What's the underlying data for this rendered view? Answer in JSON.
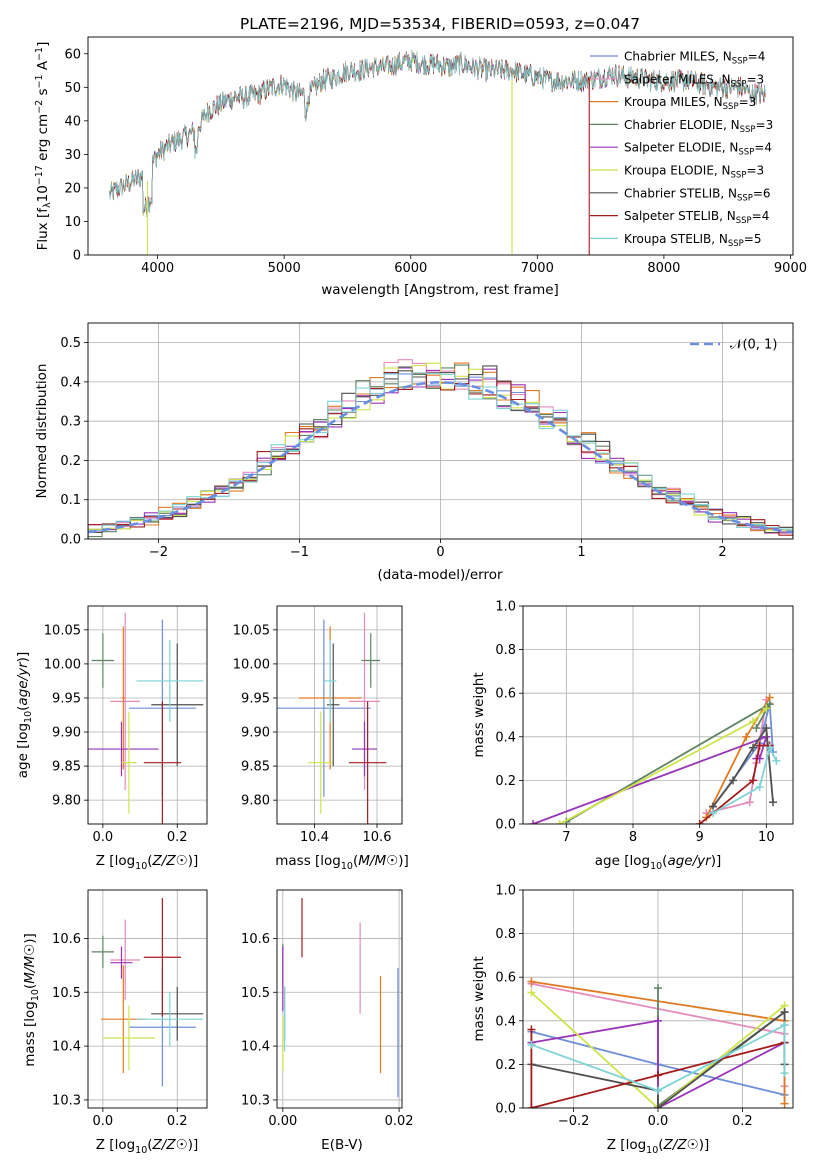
{
  "title": "PLATE=2196, MJD=53534, FIBERID=0593, z=0.047",
  "colors": {
    "chabrier_miles": "#6e8fd8",
    "salpeter_miles": "#e58bbd",
    "kroupa_miles": "#e07a22",
    "chabrier_elodie": "#5e8464",
    "salpeter_elodie": "#9a33b8",
    "kroupa_elodie": "#cfe34a",
    "chabrier_stelib": "#505050",
    "salpeter_stelib": "#a51c1c",
    "kroupa_stelib": "#7fd3d6"
  },
  "chart_data": [
    {
      "id": "spectrum",
      "type": "line",
      "xlabel": "wavelength [Angstrom, rest frame]",
      "ylabel_parts": [
        "Flux [f",
        "λ",
        "10",
        "−17",
        " erg cm",
        "−2",
        " s",
        "−1",
        " A",
        "−1",
        "]"
      ],
      "xlim": [
        3450,
        9020
      ],
      "ylim": [
        0,
        65
      ],
      "xticks": [
        4000,
        5000,
        6000,
        7000,
        8000,
        9000
      ],
      "yticks": [
        0,
        10,
        20,
        30,
        40,
        50,
        60
      ],
      "continuum": [
        [
          3620,
          18
        ],
        [
          3700,
          20
        ],
        [
          3800,
          22
        ],
        [
          3900,
          24
        ],
        [
          4000,
          30
        ],
        [
          4100,
          33
        ],
        [
          4200,
          35
        ],
        [
          4300,
          37
        ],
        [
          4400,
          43
        ],
        [
          4500,
          45
        ],
        [
          4600,
          47
        ],
        [
          4700,
          47
        ],
        [
          4800,
          48
        ],
        [
          4900,
          50
        ],
        [
          5000,
          51
        ],
        [
          5100,
          48
        ],
        [
          5200,
          48
        ],
        [
          5300,
          52
        ],
        [
          5400,
          53
        ],
        [
          5500,
          55
        ],
        [
          5600,
          55
        ],
        [
          5700,
          56
        ],
        [
          5800,
          56
        ],
        [
          5900,
          57
        ],
        [
          6000,
          58
        ],
        [
          6100,
          57
        ],
        [
          6200,
          57
        ],
        [
          6300,
          56
        ],
        [
          6400,
          57
        ],
        [
          6500,
          56
        ],
        [
          6600,
          55
        ],
        [
          6700,
          55
        ],
        [
          6800,
          55
        ],
        [
          6900,
          54
        ],
        [
          7000,
          53
        ],
        [
          7100,
          52
        ],
        [
          7200,
          52
        ],
        [
          7300,
          52
        ],
        [
          7400,
          52
        ],
        [
          7500,
          53
        ],
        [
          7600,
          54
        ],
        [
          7700,
          53
        ],
        [
          7800,
          53
        ],
        [
          7900,
          52
        ],
        [
          8000,
          52
        ],
        [
          8100,
          52
        ],
        [
          8200,
          52
        ],
        [
          8300,
          51
        ],
        [
          8400,
          50
        ],
        [
          8500,
          50
        ],
        [
          8600,
          50
        ],
        [
          8700,
          48
        ],
        [
          8800,
          48
        ]
      ],
      "legend": [
        {
          "key": "chabrier_miles",
          "name": "Chabrier MILES, N",
          "sub": "SSP",
          "suffix": "=4"
        },
        {
          "key": "salpeter_miles",
          "name": "Salpeter MILES, N",
          "sub": "SSP",
          "suffix": "=3"
        },
        {
          "key": "kroupa_miles",
          "name": "Kroupa MILES, N",
          "sub": "SSP",
          "suffix": "=3"
        },
        {
          "key": "chabrier_elodie",
          "name": "Chabrier ELODIE, N",
          "sub": "SSP",
          "suffix": "=3"
        },
        {
          "key": "salpeter_elodie",
          "name": "Salpeter ELODIE, N",
          "sub": "SSP",
          "suffix": "=4"
        },
        {
          "key": "kroupa_elodie",
          "name": "Kroupa ELODIE, N",
          "sub": "SSP",
          "suffix": "=3"
        },
        {
          "key": "chabrier_stelib",
          "name": "Chabrier STELIB, N",
          "sub": "SSP",
          "suffix": "=6"
        },
        {
          "key": "salpeter_stelib",
          "name": "Salpeter STELIB, N",
          "sub": "SSP",
          "suffix": "=4"
        },
        {
          "key": "kroupa_stelib",
          "name": "Kroupa STELIB, N",
          "sub": "SSP",
          "suffix": "=5"
        }
      ],
      "drops": [
        {
          "key": "kroupa_elodie",
          "x": 3920,
          "from": 22,
          "to": 0
        },
        {
          "key": "kroupa_elodie",
          "x": 6800,
          "from": 52,
          "to": 0
        },
        {
          "key": "salpeter_stelib",
          "x": 7410,
          "from": 53,
          "to": 0
        }
      ]
    },
    {
      "id": "residuals",
      "type": "histogram",
      "xlabel": "(data-model)/error",
      "ylabel": "Normed distribution",
      "xlim": [
        -2.5,
        2.5
      ],
      "ylim": [
        0,
        0.55
      ],
      "xticks": [
        -2,
        -1,
        0,
        1,
        2
      ],
      "yticks": [
        0.0,
        0.1,
        0.2,
        0.3,
        0.4,
        0.5
      ],
      "bin_width": 0.1,
      "normal_label": "𝒩(0, 1)",
      "normal_color": "#6a8fe0"
    },
    {
      "id": "age_vs_Z",
      "type": "errorbar",
      "xlabel": "Z [log10(Z/Z☉)]",
      "ylabel": "age [log10(age/yr)]",
      "xlim": [
        -0.04,
        0.28
      ],
      "ylim": [
        9.765,
        10.085
      ],
      "xticks": [
        0.0,
        0.2
      ],
      "yticks": [
        9.8,
        9.85,
        9.9,
        9.95,
        10.0,
        10.05
      ],
      "points": [
        {
          "key": "chabrier_miles",
          "x": 0.16,
          "xerr": 0.09,
          "y": 9.935,
          "yerr": 0.13
        },
        {
          "key": "salpeter_miles",
          "x": 0.06,
          "xerr": 0.04,
          "y": 9.945,
          "yerr": 0.13
        },
        {
          "key": "kroupa_miles",
          "x": 0.055,
          "xerr": 0.005,
          "y": 9.95,
          "yerr": 0.105
        },
        {
          "key": "chabrier_elodie",
          "x": 0.0,
          "xerr": 0.03,
          "y": 10.005,
          "yerr": 0.04
        },
        {
          "key": "salpeter_elodie",
          "x": 0.05,
          "xerr": 0.1,
          "y": 9.875,
          "yerr": 0.04
        },
        {
          "key": "kroupa_elodie",
          "x": 0.07,
          "xerr": 0.02,
          "y": 9.855,
          "yerr": 0.075
        },
        {
          "key": "chabrier_stelib",
          "x": 0.2,
          "xerr": 0.07,
          "y": 9.94,
          "yerr": 0.09
        },
        {
          "key": "salpeter_stelib",
          "x": 0.16,
          "xerr": 0.05,
          "y": 9.855,
          "yerr": 0.09
        },
        {
          "key": "kroupa_stelib",
          "x": 0.18,
          "xerr": 0.09,
          "y": 9.975,
          "yerr": 0.06
        }
      ]
    },
    {
      "id": "age_vs_mass",
      "type": "errorbar",
      "xlabel": "mass [log10(M/M☉)]",
      "ylabel": "",
      "xlim": [
        10.28,
        10.68
      ],
      "ylim": [
        9.765,
        10.085
      ],
      "xticks": [
        10.4,
        10.6
      ],
      "yticks": [
        9.8,
        9.85,
        9.9,
        9.95,
        10.0,
        10.05
      ],
      "points": [
        {
          "key": "chabrier_miles",
          "x": 10.43,
          "xerr": 0.15,
          "y": 9.935,
          "yerr": 0.13
        },
        {
          "key": "salpeter_miles",
          "x": 10.56,
          "xerr": 0.05,
          "y": 9.945,
          "yerr": 0.13
        },
        {
          "key": "kroupa_miles",
          "x": 10.45,
          "xerr": 0.1,
          "y": 9.95,
          "yerr": 0.105
        },
        {
          "key": "chabrier_elodie",
          "x": 10.58,
          "xerr": 0.03,
          "y": 10.005,
          "yerr": 0.04
        },
        {
          "key": "salpeter_elodie",
          "x": 10.56,
          "xerr": 0.04,
          "y": 9.875,
          "yerr": 0.04
        },
        {
          "key": "kroupa_elodie",
          "x": 10.42,
          "xerr": 0.04,
          "y": 9.855,
          "yerr": 0.075
        },
        {
          "key": "chabrier_stelib",
          "x": 10.46,
          "xerr": 0.02,
          "y": 9.94,
          "yerr": 0.09
        },
        {
          "key": "salpeter_stelib",
          "x": 10.57,
          "xerr": 0.06,
          "y": 9.855,
          "yerr": 0.09
        },
        {
          "key": "kroupa_stelib",
          "x": 10.45,
          "xerr": 0.02,
          "y": 9.975,
          "yerr": 0.06
        }
      ]
    },
    {
      "id": "weight_vs_age",
      "type": "line",
      "xlabel": "age [log10(age/yr)]",
      "ylabel": "mass weight",
      "xlim": [
        6.35,
        10.4
      ],
      "ylim": [
        0.0,
        1.0
      ],
      "xticks": [
        7,
        8,
        9,
        10
      ],
      "yticks": [
        0.0,
        0.2,
        0.4,
        0.6,
        0.8,
        1.0
      ],
      "series": [
        {
          "key": "chabrier_miles",
          "points": [
            [
              9.2,
              0.08
            ],
            [
              9.9,
              0.37
            ],
            [
              10.05,
              0.55
            ],
            [
              10.1,
              0.33
            ]
          ]
        },
        {
          "key": "salpeter_miles",
          "points": [
            [
              9.1,
              0.05
            ],
            [
              9.75,
              0.1
            ],
            [
              10.0,
              0.57
            ],
            [
              9.85,
              0.28
            ]
          ]
        },
        {
          "key": "kroupa_miles",
          "points": [
            [
              9.1,
              0.03
            ],
            [
              9.7,
              0.4
            ],
            [
              10.05,
              0.58
            ]
          ]
        },
        {
          "key": "chabrier_elodie",
          "points": [
            [
              7.0,
              0.01
            ],
            [
              10.05,
              0.55
            ],
            [
              9.85,
              0.44
            ]
          ]
        },
        {
          "key": "salpeter_elodie",
          "points": [
            [
              6.5,
              0.0
            ],
            [
              10.0,
              0.4
            ],
            [
              9.9,
              0.3
            ],
            [
              9.85,
              0.3
            ]
          ]
        },
        {
          "key": "kroupa_elodie",
          "points": [
            [
              6.9,
              0.0
            ],
            [
              9.8,
              0.47
            ],
            [
              10.0,
              0.53
            ]
          ]
        },
        {
          "key": "chabrier_stelib",
          "points": [
            [
              9.2,
              0.08
            ],
            [
              9.5,
              0.2
            ],
            [
              9.8,
              0.35
            ],
            [
              10.0,
              0.44
            ],
            [
              10.1,
              0.1
            ]
          ]
        },
        {
          "key": "salpeter_stelib",
          "points": [
            [
              9.0,
              0.0
            ],
            [
              9.8,
              0.2
            ],
            [
              9.9,
              0.36
            ],
            [
              10.05,
              0.36
            ]
          ]
        },
        {
          "key": "kroupa_stelib",
          "points": [
            [
              9.2,
              0.05
            ],
            [
              9.9,
              0.17
            ],
            [
              10.05,
              0.35
            ],
            [
              10.15,
              0.29
            ]
          ]
        }
      ]
    },
    {
      "id": "mass_vs_Z",
      "type": "errorbar",
      "xlabel": "Z [log10(Z/Z☉)]",
      "ylabel": "mass [log10(M/M☉)]",
      "xlim": [
        -0.04,
        0.28
      ],
      "ylim": [
        10.285,
        10.69
      ],
      "xticks": [
        0.0,
        0.2
      ],
      "yticks": [
        10.3,
        10.4,
        10.5,
        10.6
      ],
      "points": [
        {
          "key": "chabrier_miles",
          "x": 0.16,
          "xerr": 0.09,
          "y": 10.435,
          "yerr": 0.11
        },
        {
          "key": "salpeter_miles",
          "x": 0.06,
          "xerr": 0.04,
          "y": 10.56,
          "yerr": 0.075
        },
        {
          "key": "kroupa_miles",
          "x": 0.055,
          "xerr": 0.06,
          "y": 10.45,
          "yerr": 0.1
        },
        {
          "key": "chabrier_elodie",
          "x": 0.0,
          "xerr": 0.03,
          "y": 10.575,
          "yerr": 0.03
        },
        {
          "key": "salpeter_elodie",
          "x": 0.05,
          "xerr": 0.03,
          "y": 10.555,
          "yerr": 0.03
        },
        {
          "key": "kroupa_elodie",
          "x": 0.07,
          "xerr": 0.07,
          "y": 10.415,
          "yerr": 0.06
        },
        {
          "key": "chabrier_stelib",
          "x": 0.2,
          "xerr": 0.07,
          "y": 10.46,
          "yerr": 0.05
        },
        {
          "key": "salpeter_stelib",
          "x": 0.16,
          "xerr": 0.05,
          "y": 10.565,
          "yerr": 0.11
        },
        {
          "key": "kroupa_stelib",
          "x": 0.18,
          "xerr": 0.09,
          "y": 10.45,
          "yerr": 0.05
        }
      ]
    },
    {
      "id": "mass_vs_ebv",
      "type": "errorbar",
      "xlabel": "E(B-V)",
      "ylabel": "",
      "xlim": [
        -0.001,
        0.0205
      ],
      "ylim": [
        10.285,
        10.69
      ],
      "xticks": [
        0.0,
        0.02
      ],
      "yticks": [
        10.3,
        10.4,
        10.5,
        10.6
      ],
      "points": [
        {
          "key": "chabrier_miles",
          "x": 0.0198,
          "xerr": 0.0,
          "y": 10.425,
          "yerr": 0.12
        },
        {
          "key": "salpeter_miles",
          "x": 0.0133,
          "xerr": 0.0,
          "y": 10.545,
          "yerr": 0.085
        },
        {
          "key": "kroupa_miles",
          "x": 0.0168,
          "xerr": 0.0,
          "y": 10.44,
          "yerr": 0.09
        },
        {
          "key": "chabrier_elodie",
          "x": 0.0,
          "xerr": 0.0,
          "y": 10.55,
          "yerr": 0.04
        },
        {
          "key": "salpeter_elodie",
          "x": 0.0,
          "xerr": 0.0,
          "y": 10.525,
          "yerr": 0.06
        },
        {
          "key": "kroupa_elodie",
          "x": 0.0,
          "xerr": 0.0,
          "y": 10.405,
          "yerr": 0.05
        },
        {
          "key": "chabrier_stelib",
          "x": 0.0003,
          "xerr": 0.0,
          "y": 10.46,
          "yerr": 0.05
        },
        {
          "key": "salpeter_stelib",
          "x": 0.0033,
          "xerr": 0.0,
          "y": 10.62,
          "yerr": 0.055
        },
        {
          "key": "kroupa_stelib",
          "x": 0.0003,
          "xerr": 0.0,
          "y": 10.45,
          "yerr": 0.06
        }
      ]
    },
    {
      "id": "weight_vs_Z",
      "type": "line",
      "xlabel": "Z [log10(Z/Z☉)]",
      "ylabel": "mass weight",
      "xlim": [
        -0.32,
        0.32
      ],
      "ylim": [
        0.0,
        1.0
      ],
      "xticks": [
        -0.2,
        0.0,
        0.2
      ],
      "yticks": [
        0.0,
        0.2,
        0.4,
        0.6,
        0.8,
        1.0
      ],
      "series": [
        {
          "key": "chabrier_miles",
          "points": [
            [
              -0.3,
              0.35
            ],
            [
              0.0,
              0.2
            ],
            [
              0.3,
              0.06
            ],
            [
              0.3,
              0.38
            ]
          ]
        },
        {
          "key": "salpeter_miles",
          "points": [
            [
              -0.3,
              0.57
            ],
            [
              0.3,
              0.34
            ],
            [
              0.3,
              0.1
            ]
          ]
        },
        {
          "key": "kroupa_miles",
          "points": [
            [
              -0.3,
              0.58
            ],
            [
              0.3,
              0.4
            ],
            [
              0.3,
              0.02
            ]
          ]
        },
        {
          "key": "chabrier_elodie",
          "points": [
            [
              0.0,
              0.55
            ],
            [
              0.0,
              0.01
            ],
            [
              0.3,
              0.44
            ]
          ]
        },
        {
          "key": "salpeter_elodie",
          "points": [
            [
              -0.3,
              0.3
            ],
            [
              0.0,
              0.4
            ],
            [
              0.0,
              0.0
            ],
            [
              0.3,
              0.3
            ]
          ]
        },
        {
          "key": "kroupa_elodie",
          "points": [
            [
              -0.3,
              0.53
            ],
            [
              0.0,
              0.0
            ],
            [
              0.3,
              0.47
            ]
          ]
        },
        {
          "key": "chabrier_stelib",
          "points": [
            [
              -0.3,
              0.2
            ],
            [
              0.0,
              0.08
            ],
            [
              0.0,
              0.0
            ],
            [
              0.3,
              0.44
            ],
            [
              0.3,
              0.2
            ]
          ]
        },
        {
          "key": "salpeter_stelib",
          "points": [
            [
              -0.3,
              0.36
            ],
            [
              -0.3,
              0.0
            ],
            [
              0.0,
              0.15
            ],
            [
              0.3,
              0.3
            ]
          ]
        },
        {
          "key": "kroupa_stelib",
          "points": [
            [
              -0.3,
              0.29
            ],
            [
              0.0,
              0.08
            ],
            [
              0.3,
              0.38
            ],
            [
              0.3,
              0.16
            ]
          ]
        }
      ]
    }
  ]
}
